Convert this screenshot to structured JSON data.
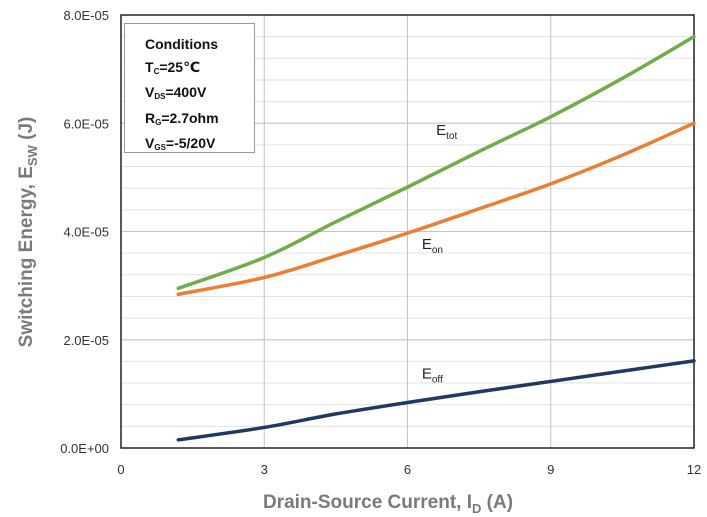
{
  "chart_data": {
    "type": "line",
    "xlabel": {
      "main": "Drain-Source Current, I",
      "sub": "D",
      "suffix": " (A)"
    },
    "ylabel": {
      "main": "Switching Energy, E",
      "sub": "SW",
      "suffix": " (J)"
    },
    "xlim": [
      0,
      12
    ],
    "ylim": [
      0,
      8e-05
    ],
    "x_ticks": [
      0,
      3,
      6,
      9,
      12
    ],
    "x_tick_labels": [
      "0",
      "3",
      "6",
      "9",
      "12"
    ],
    "y_ticks": [
      0,
      2e-05,
      4e-05,
      6e-05,
      8e-05
    ],
    "y_tick_labels": [
      "0.0E+00",
      "2.0E-05",
      "4.0E-05",
      "6.0E-05",
      "8.0E-05"
    ],
    "grid": true,
    "series": [
      {
        "label": {
          "main": "E",
          "sub": "tot"
        },
        "color": "#70ad47",
        "x": [
          1.2,
          3,
          4.5,
          6,
          7.5,
          9,
          10.5,
          12
        ],
        "y": [
          2.95e-05,
          3.52e-05,
          4.18e-05,
          4.82e-05,
          5.48e-05,
          6.12e-05,
          6.83e-05,
          7.6e-05
        ],
        "label_at": [
          6.6,
          5.78e-05
        ]
      },
      {
        "label": {
          "main": "E",
          "sub": "on"
        },
        "color": "#ed7d31",
        "x": [
          1.2,
          3,
          4.5,
          6,
          7.5,
          9,
          10.5,
          12
        ],
        "y": [
          2.84e-05,
          3.15e-05,
          3.55e-05,
          3.97e-05,
          4.42e-05,
          4.88e-05,
          5.41e-05,
          6e-05
        ],
        "label_at": [
          6.3,
          3.68e-05
        ]
      },
      {
        "label": {
          "main": "E",
          "sub": "off"
        },
        "color": "#203864",
        "x": [
          1.2,
          3,
          4.5,
          6,
          7.5,
          9,
          10.5,
          12
        ],
        "y": [
          1.5e-06,
          3.8e-06,
          6.3e-06,
          8.4e-06,
          1.04e-05,
          1.23e-05,
          1.42e-05,
          1.61e-05
        ],
        "label_at": [
          6.3,
          1.28e-05
        ]
      }
    ],
    "conditions": [
      {
        "main": "Conditions",
        "sub": "",
        "rest": ""
      },
      {
        "main": "T",
        "sub": "C",
        "rest": "=25℃"
      },
      {
        "main": "V",
        "sub": "DS",
        "rest": "=400V"
      },
      {
        "main": "R",
        "sub": "G",
        "rest": "=2.7ohm"
      },
      {
        "main": "V",
        "sub": "GS",
        "rest": "=-5/20V"
      }
    ]
  }
}
